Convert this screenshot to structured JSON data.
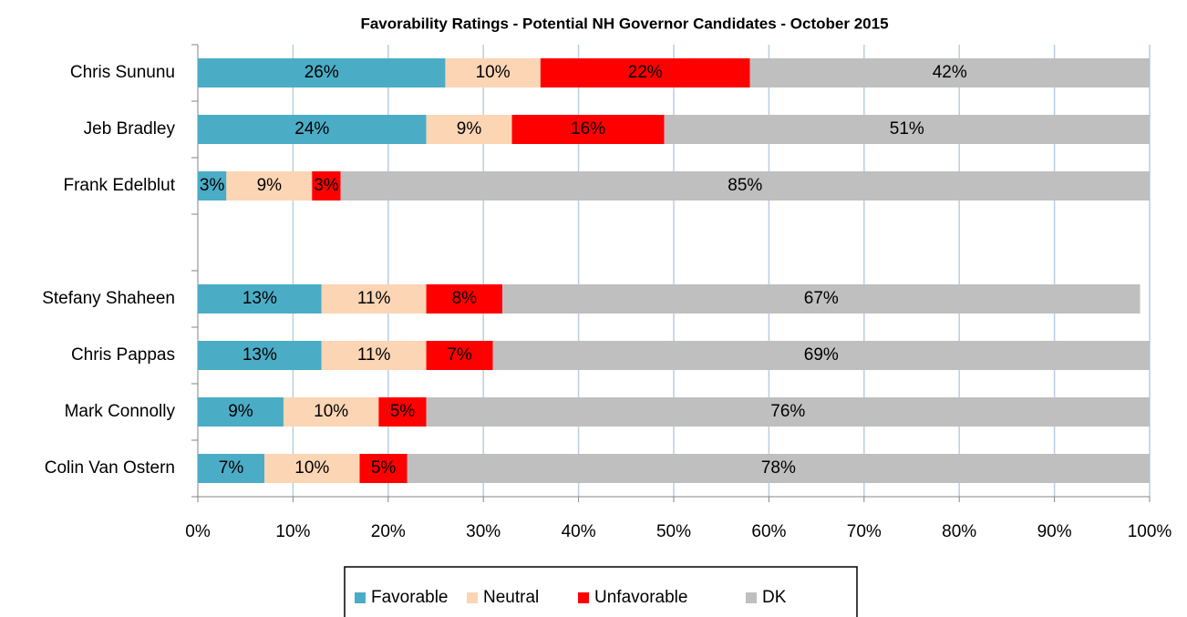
{
  "chart_data": {
    "type": "stacked_barh",
    "title": "Favorability Ratings - Potential NH Governor Candidates - October 2015",
    "categories": [
      "Chris Sununu",
      "Jeb Bradley",
      "Frank Edelblut",
      null,
      "Stefany Shaheen",
      "Chris Pappas",
      "Mark Connolly",
      "Colin Van Ostern"
    ],
    "series": [
      {
        "name": "Favorable",
        "color": "#4bacc6",
        "values": [
          26,
          24,
          3,
          null,
          13,
          13,
          9,
          7
        ],
        "value_labels": [
          "26%",
          "24%",
          "3%",
          null,
          "13%",
          "13%",
          "9%",
          "7%"
        ]
      },
      {
        "name": "Neutral",
        "color": "#fcd5b5",
        "values": [
          10,
          9,
          9,
          null,
          11,
          11,
          10,
          10
        ],
        "value_labels": [
          "10%",
          "9%",
          "9%",
          null,
          "11%",
          "11%",
          "10%",
          "10%"
        ]
      },
      {
        "name": "Unfavorable",
        "color": "#ff0000",
        "values": [
          22,
          16,
          3,
          null,
          8,
          7,
          5,
          5
        ],
        "value_labels": [
          "22%",
          "16%",
          "3%",
          null,
          "8%",
          "7%",
          "5%",
          "5%"
        ]
      },
      {
        "name": "DK",
        "color": "#bfbfbf",
        "values": [
          42,
          51,
          85,
          null,
          67,
          69,
          76,
          78
        ],
        "value_labels": [
          "42%",
          "51%",
          "85%",
          null,
          "67%",
          "69%",
          "76%",
          "78%"
        ]
      }
    ],
    "xlim": [
      0,
      100
    ],
    "xticks": [
      {
        "value": 0,
        "label": "0%"
      },
      {
        "value": 10,
        "label": "10%"
      },
      {
        "value": 20,
        "label": "20%"
      },
      {
        "value": 30,
        "label": "30%"
      },
      {
        "value": 40,
        "label": "40%"
      },
      {
        "value": 50,
        "label": "50%"
      },
      {
        "value": 60,
        "label": "60%"
      },
      {
        "value": 70,
        "label": "70%"
      },
      {
        "value": 80,
        "label": "80%"
      },
      {
        "value": 90,
        "label": "90%"
      },
      {
        "value": 100,
        "label": "100%"
      }
    ],
    "grid": true,
    "legend": "bottom"
  }
}
